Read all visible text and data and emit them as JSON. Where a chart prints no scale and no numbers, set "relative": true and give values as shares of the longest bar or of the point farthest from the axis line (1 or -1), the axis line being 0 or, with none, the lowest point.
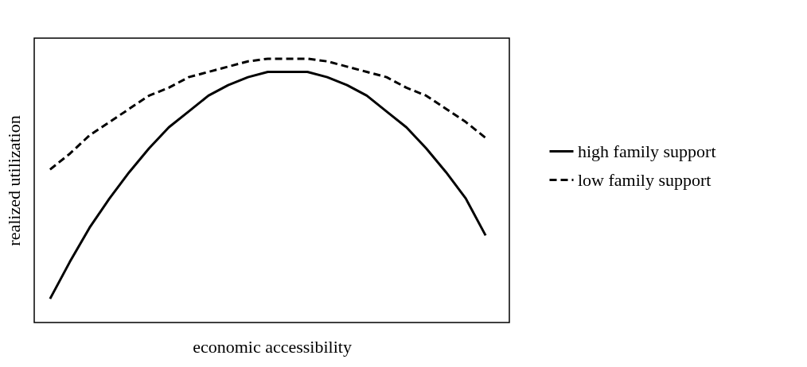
{
  "chart_data": {
    "type": "line",
    "relative": true,
    "xlabel": "economic accessibility",
    "ylabel": "realized utilization",
    "legend": "right",
    "grid": false,
    "categories": [
      null,
      null,
      null,
      null,
      null,
      null,
      null,
      null,
      null,
      null,
      null,
      null,
      null,
      null,
      null,
      null,
      null,
      null,
      null,
      null,
      null,
      null,
      null
    ],
    "series": [
      {
        "name": "high family support",
        "color": "#000000",
        "line_style": "solid",
        "values": [
          0.09,
          0.23,
          0.36,
          0.47,
          0.57,
          0.66,
          0.74,
          0.8,
          0.86,
          0.9,
          0.93,
          0.95,
          0.95,
          0.95,
          0.93,
          0.9,
          0.86,
          0.8,
          0.74,
          0.66,
          0.57,
          0.47,
          0.33
        ]
      },
      {
        "name": "low family support",
        "color": "#000000",
        "line_style": "dashed",
        "values": [
          0.58,
          0.64,
          0.71,
          0.76,
          0.81,
          0.86,
          0.89,
          0.93,
          0.95,
          0.97,
          0.99,
          1,
          1,
          1,
          0.99,
          0.97,
          0.95,
          0.93,
          0.89,
          0.86,
          0.81,
          0.76,
          0.7
        ]
      }
    ]
  }
}
